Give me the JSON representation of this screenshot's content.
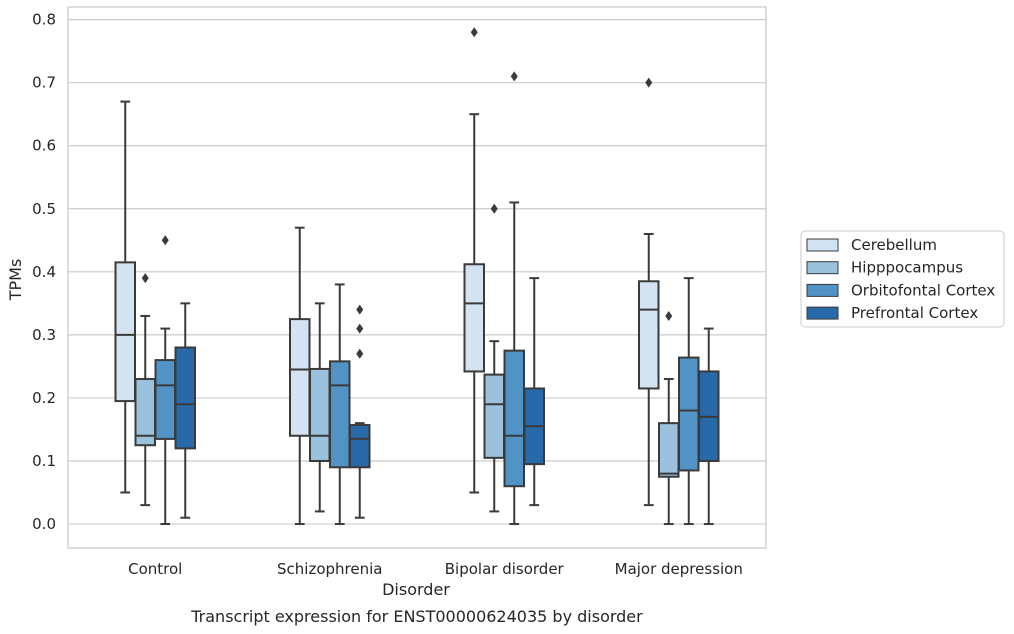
{
  "chart_data": {
    "type": "box",
    "title": "",
    "caption": "Transcript expression for ENST00000624035 by disorder",
    "xlabel": "Disorder",
    "ylabel": "TPMs",
    "ylim": [
      -0.038,
      0.82
    ],
    "yticks": [
      "0.0",
      "0.1",
      "0.2",
      "0.3",
      "0.4",
      "0.5",
      "0.6",
      "0.7",
      "0.8"
    ],
    "ytick_values": [
      0.0,
      0.1,
      0.2,
      0.3,
      0.4,
      0.5,
      0.6,
      0.7,
      0.8
    ],
    "grid": "horizontal",
    "legend_position": "right",
    "categories": [
      "Control",
      "Schizophrenia",
      "Bipolar disorder",
      "Major depression"
    ],
    "series": [
      {
        "name": "Cerebellum",
        "color": "#d4e3f2",
        "boxes": [
          {
            "whislo": 0.05,
            "q1": 0.195,
            "med": 0.3,
            "q3": 0.415,
            "whishi": 0.67,
            "fliers": []
          },
          {
            "whislo": 0.0,
            "q1": 0.14,
            "med": 0.245,
            "q3": 0.325,
            "whishi": 0.47,
            "fliers": []
          },
          {
            "whislo": 0.05,
            "q1": 0.242,
            "med": 0.35,
            "q3": 0.412,
            "whishi": 0.65,
            "fliers": [
              0.78
            ]
          },
          {
            "whislo": 0.03,
            "q1": 0.215,
            "med": 0.34,
            "q3": 0.385,
            "whishi": 0.46,
            "fliers": [
              0.7
            ]
          }
        ]
      },
      {
        "name": "Hipppocampus",
        "color": "#9ac2dc",
        "boxes": [
          {
            "whislo": 0.03,
            "q1": 0.125,
            "med": 0.14,
            "q3": 0.23,
            "whishi": 0.33,
            "fliers": [
              0.39
            ]
          },
          {
            "whislo": 0.02,
            "q1": 0.1,
            "med": 0.14,
            "q3": 0.246,
            "whishi": 0.35,
            "fliers": []
          },
          {
            "whislo": 0.02,
            "q1": 0.105,
            "med": 0.19,
            "q3": 0.237,
            "whishi": 0.29,
            "fliers": [
              0.5
            ]
          },
          {
            "whislo": 0.0,
            "q1": 0.075,
            "med": 0.08,
            "q3": 0.16,
            "whishi": 0.23,
            "fliers": [
              0.33
            ]
          }
        ]
      },
      {
        "name": "Orbitofontal Cortex",
        "color": "#5193c5",
        "boxes": [
          {
            "whislo": 0.0,
            "q1": 0.135,
            "med": 0.22,
            "q3": 0.26,
            "whishi": 0.31,
            "fliers": [
              0.45
            ]
          },
          {
            "whislo": 0.0,
            "q1": 0.09,
            "med": 0.22,
            "q3": 0.258,
            "whishi": 0.38,
            "fliers": []
          },
          {
            "whislo": 0.0,
            "q1": 0.06,
            "med": 0.14,
            "q3": 0.275,
            "whishi": 0.51,
            "fliers": [
              0.71
            ]
          },
          {
            "whislo": 0.0,
            "q1": 0.085,
            "med": 0.18,
            "q3": 0.264,
            "whishi": 0.39,
            "fliers": []
          }
        ]
      },
      {
        "name": "Prefrontal Cortex",
        "color": "#2769a9",
        "boxes": [
          {
            "whislo": 0.01,
            "q1": 0.12,
            "med": 0.19,
            "q3": 0.28,
            "whishi": 0.35,
            "fliers": []
          },
          {
            "whislo": 0.01,
            "q1": 0.09,
            "med": 0.135,
            "q3": 0.157,
            "whishi": 0.16,
            "fliers": [
              0.27,
              0.31,
              0.34
            ]
          },
          {
            "whislo": 0.03,
            "q1": 0.095,
            "med": 0.155,
            "q3": 0.215,
            "whishi": 0.39,
            "fliers": []
          },
          {
            "whislo": 0.0,
            "q1": 0.1,
            "med": 0.17,
            "q3": 0.242,
            "whishi": 0.31,
            "fliers": []
          }
        ]
      }
    ]
  }
}
